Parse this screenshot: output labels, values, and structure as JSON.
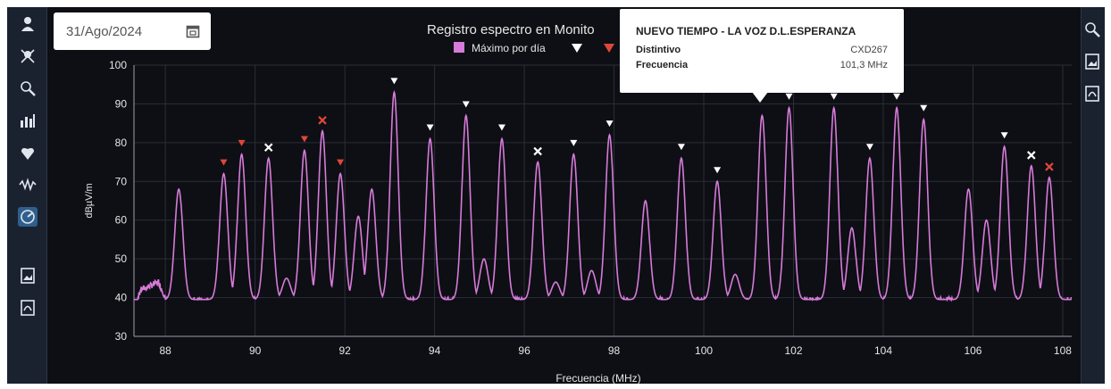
{
  "toolbar": {
    "date_value": "31/Ago/2024",
    "left_icons": [
      "person-icon",
      "crossbones-icon",
      "zoom-icon",
      "bar-chart-icon",
      "heart-shield-icon",
      "signal-wave-icon",
      "spectrum-gauge-icon",
      "image-export-icon",
      "pdf-export-icon"
    ],
    "right_icons": [
      "zoom-icon",
      "image-export-icon",
      "pdf-export-icon"
    ]
  },
  "tooltip": {
    "title": "NUEVO TIEMPO - LA VOZ D.L.ESPERANZA",
    "rows": [
      {
        "key": "Distintivo",
        "value": "CXD267"
      },
      {
        "key": "Frecuencia",
        "value": "101,3 MHz"
      }
    ]
  },
  "colors": {
    "background": "#0d0f14",
    "series": "#d77ad9",
    "grid": "#2b2f36",
    "marker_white": "#ffffff",
    "marker_red": "#e0463a"
  },
  "chart_data": {
    "type": "line",
    "title": "Registro espectro en Monito",
    "xlabel": "Frecuencia (MHz)",
    "ylabel": "dBµV/m",
    "xlim": [
      87.3,
      108.2
    ],
    "ylim": [
      30,
      100
    ],
    "xticks": [
      "88",
      "90",
      "92",
      "94",
      "96",
      "98",
      "100",
      "102",
      "104",
      "106",
      "108"
    ],
    "yticks": [
      "30",
      "40",
      "50",
      "60",
      "70",
      "80",
      "90",
      "100"
    ],
    "grid": true,
    "legend": {
      "placement": "top-center",
      "entries": [
        {
          "name": "Máximo por día",
          "color": "#d77ad9"
        }
      ]
    },
    "noise_floor": 39.5,
    "low_end": [
      [
        87.3,
        37
      ],
      [
        87.45,
        42
      ],
      [
        87.65,
        43
      ],
      [
        87.85,
        44
      ],
      [
        88.0,
        40
      ]
    ],
    "peaks": [
      {
        "f": 88.3,
        "v": 68
      },
      {
        "f": 89.3,
        "v": 72,
        "marker": "red-triangle"
      },
      {
        "f": 89.7,
        "v": 77,
        "marker": "red-triangle"
      },
      {
        "f": 90.3,
        "v": 76,
        "marker": "white-x"
      },
      {
        "f": 90.7,
        "v": 45
      },
      {
        "f": 91.1,
        "v": 78,
        "marker": "red-triangle"
      },
      {
        "f": 91.5,
        "v": 83,
        "marker": "red-x"
      },
      {
        "f": 91.9,
        "v": 72,
        "marker": "red-triangle"
      },
      {
        "f": 92.3,
        "v": 61
      },
      {
        "f": 92.6,
        "v": 68
      },
      {
        "f": 93.1,
        "v": 93,
        "marker": "white-triangle"
      },
      {
        "f": 93.9,
        "v": 81,
        "marker": "white-triangle"
      },
      {
        "f": 94.7,
        "v": 87,
        "marker": "white-triangle"
      },
      {
        "f": 95.1,
        "v": 50
      },
      {
        "f": 95.5,
        "v": 81,
        "marker": "white-triangle"
      },
      {
        "f": 96.3,
        "v": 75,
        "marker": "white-x"
      },
      {
        "f": 96.7,
        "v": 44
      },
      {
        "f": 97.1,
        "v": 77,
        "marker": "white-triangle"
      },
      {
        "f": 97.5,
        "v": 47
      },
      {
        "f": 97.9,
        "v": 82,
        "marker": "white-triangle"
      },
      {
        "f": 98.7,
        "v": 65
      },
      {
        "f": 99.5,
        "v": 76,
        "marker": "white-triangle"
      },
      {
        "f": 100.3,
        "v": 70,
        "marker": "white-triangle"
      },
      {
        "f": 100.7,
        "v": 46
      },
      {
        "f": 101.3,
        "v": 87
      },
      {
        "f": 101.9,
        "v": 89,
        "marker": "white-triangle"
      },
      {
        "f": 102.9,
        "v": 89,
        "marker": "white-triangle"
      },
      {
        "f": 103.3,
        "v": 58
      },
      {
        "f": 103.7,
        "v": 76,
        "marker": "white-triangle"
      },
      {
        "f": 104.3,
        "v": 89,
        "marker": "white-triangle"
      },
      {
        "f": 104.9,
        "v": 86,
        "marker": "white-triangle"
      },
      {
        "f": 105.9,
        "v": 68
      },
      {
        "f": 106.3,
        "v": 60
      },
      {
        "f": 106.7,
        "v": 79,
        "marker": "white-triangle"
      },
      {
        "f": 107.3,
        "v": 74,
        "marker": "white-x"
      },
      {
        "f": 107.7,
        "v": 71,
        "marker": "red-x"
      }
    ]
  }
}
